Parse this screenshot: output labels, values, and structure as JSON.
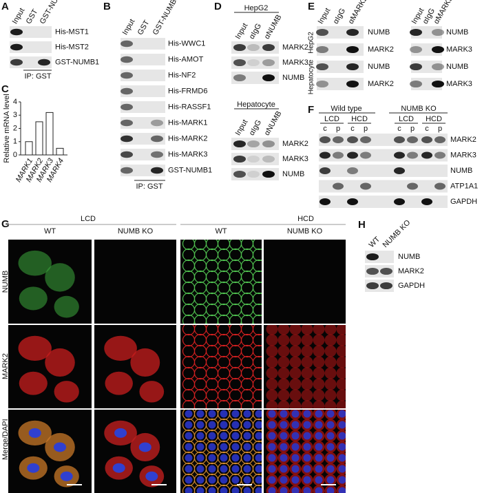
{
  "a": {
    "label": "A",
    "lanes": [
      "Input",
      "GST",
      "GST-NUMB1"
    ],
    "rows": [
      "His-MST1",
      "His-MST2",
      "GST-NUMB1"
    ],
    "note": "IP: GST"
  },
  "b": {
    "label": "B",
    "lanes": [
      "Input",
      "GST",
      "GST-NUMB1"
    ],
    "rows": [
      "His-WWC1",
      "His-AMOT",
      "His-NF2",
      "His-FRMD6",
      "His-RASSF1",
      "His-MARK1",
      "His-MARK2",
      "His-MARK3",
      "GST-NUMB1"
    ],
    "note": "IP: GST"
  },
  "chart_data": {
    "type": "bar",
    "panel": "C",
    "y_label": "Relative mRNA level",
    "categories": [
      "MARK1",
      "MARK2",
      "MARK3",
      "MARK4"
    ],
    "values": [
      1.0,
      2.5,
      3.2,
      0.5
    ],
    "ylim": [
      0,
      4
    ],
    "yticks": [
      0,
      1,
      2,
      3,
      4
    ],
    "color": "#ffffff"
  },
  "d": {
    "label": "D",
    "groups": [
      {
        "title": "HepG2",
        "lanes": [
          "Input",
          "αIgG",
          "αNUMB"
        ],
        "rows": [
          "MARK2",
          "MARK3",
          "NUMB"
        ]
      },
      {
        "title": "Hepatocyte",
        "lanes": [
          "Input",
          "αIgG",
          "αNUMB"
        ],
        "rows": [
          "MARK2",
          "MARK3",
          "NUMB"
        ]
      }
    ]
  },
  "e": {
    "label": "E",
    "cell_lines": [
      "HepG2",
      "Hepatocyte"
    ],
    "groups": [
      {
        "lanes": [
          "Input",
          "αIgG",
          "αMARK2"
        ],
        "rows": [
          "NUMB",
          "MARK2",
          "NUMB",
          "MARK2"
        ]
      },
      {
        "lanes": [
          "Input",
          "αIgG",
          "αMARK3"
        ],
        "rows": [
          "NUMB",
          "MARK3",
          "NUMB",
          "MARK3"
        ]
      }
    ]
  },
  "f": {
    "label": "F",
    "genotypes": [
      "Wild type",
      "NUMB KO"
    ],
    "conditions": [
      "LCD",
      "HCD",
      "LCD",
      "HCD"
    ],
    "fractions": [
      "c",
      "p",
      "c",
      "p",
      "c",
      "p",
      "c",
      "p"
    ],
    "rows": [
      "MARK2",
      "MARK3",
      "NUMB",
      "ATP1A1",
      "GAPDH"
    ]
  },
  "g": {
    "label": "G",
    "conditions": [
      "LCD",
      "HCD"
    ],
    "genotypes": [
      "WT",
      "NUMB KO",
      "WT",
      "NUMB KO"
    ],
    "channels": [
      "NUMB",
      "MARK2"
    ],
    "merge": [
      "Merge/",
      "DAPI"
    ]
  },
  "h": {
    "label": "H",
    "lanes": [
      "WT",
      "NUMB KO"
    ],
    "rows": [
      "NUMB",
      "MARK2",
      "GAPDH"
    ]
  }
}
